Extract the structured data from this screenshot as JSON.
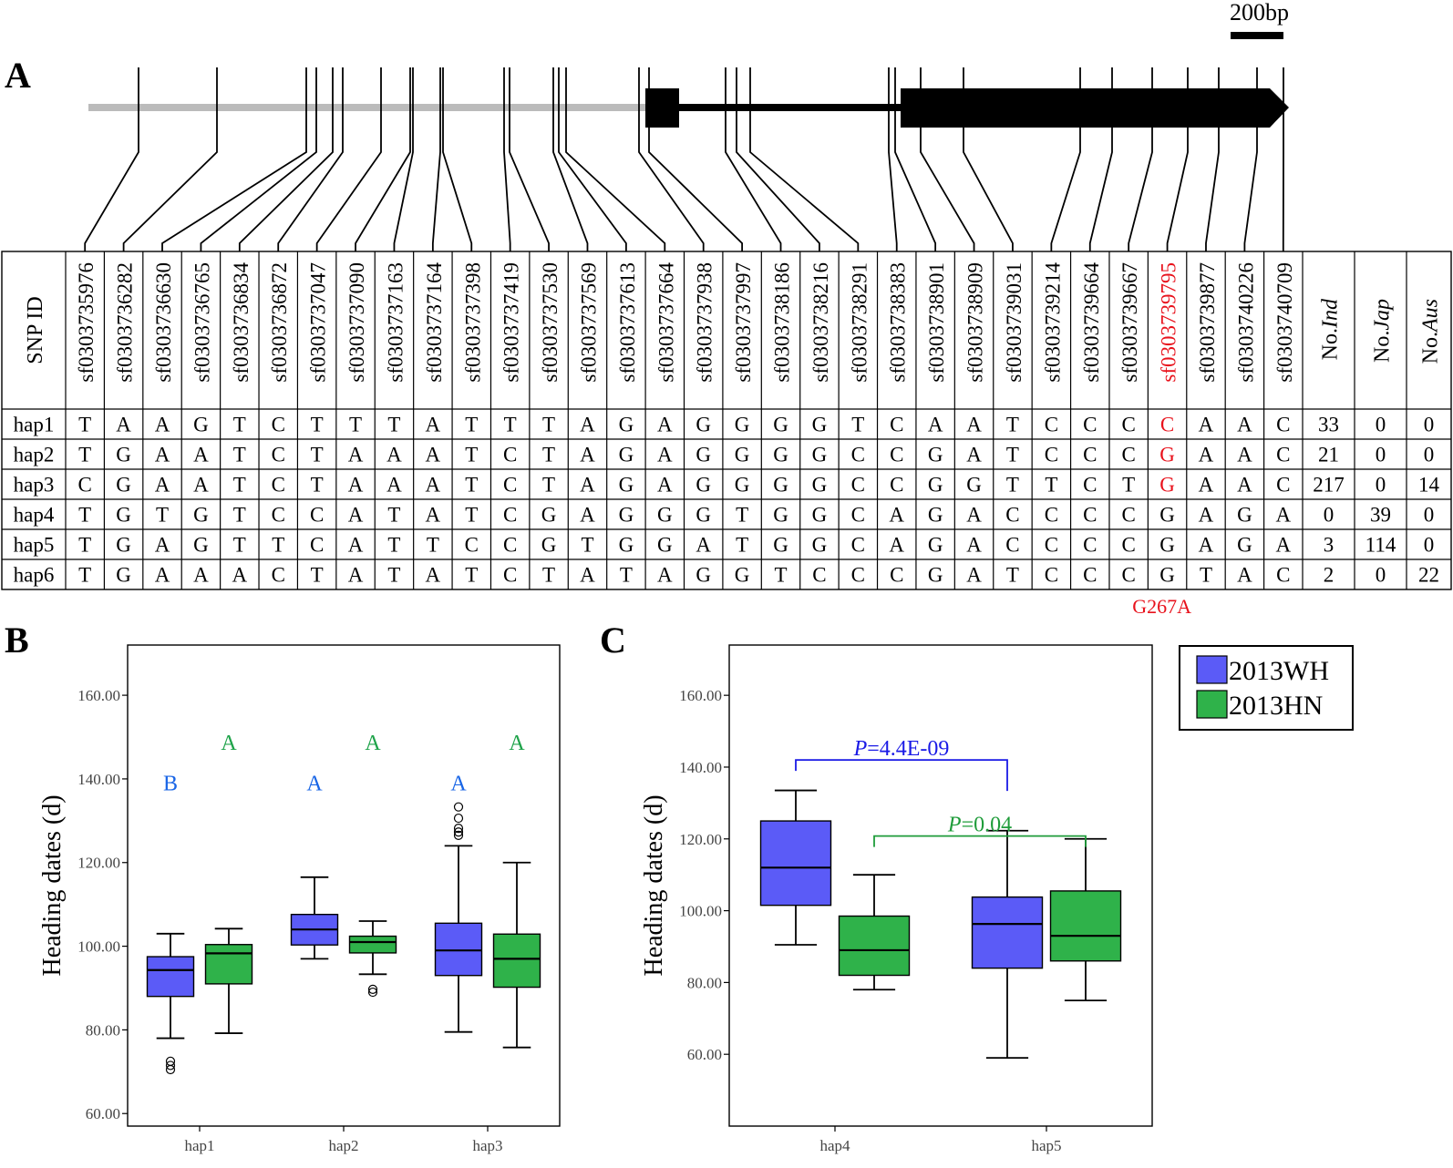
{
  "panels": {
    "a": "A",
    "b": "B",
    "c": "C"
  },
  "scale_bar_label": "200bp",
  "snp_table": {
    "id_header": "SNP ID",
    "snp_ids": [
      "sf0303735976",
      "sf0303736282",
      "sf0303736630",
      "sf0303736765",
      "sf0303736834",
      "sf0303736872",
      "sf0303737047",
      "sf0303737090",
      "sf0303737163",
      "sf0303737164",
      "sf0303737398",
      "sf0303737419",
      "sf0303737530",
      "sf0303737569",
      "sf0303737613",
      "sf0303737664",
      "sf0303737938",
      "sf0303737997",
      "sf0303738186",
      "sf0303738216",
      "sf0303738291",
      "sf0303738383",
      "sf0303738901",
      "sf0303738909",
      "sf0303739031",
      "sf0303739214",
      "sf0303739664",
      "sf0303739667",
      "sf0303739795",
      "sf0303739877",
      "sf0303740226",
      "sf0303740709"
    ],
    "highlight_index": 28,
    "count_headers": [
      {
        "prefix": "No.",
        "italic": "Ind"
      },
      {
        "prefix": "No.",
        "italic": "Jap"
      },
      {
        "prefix": "No.",
        "italic": "Aus"
      }
    ],
    "rows": [
      {
        "name": "hap1",
        "alleles": [
          "T",
          "A",
          "A",
          "G",
          "T",
          "C",
          "T",
          "T",
          "T",
          "A",
          "T",
          "T",
          "T",
          "A",
          "G",
          "A",
          "G",
          "G",
          "G",
          "G",
          "T",
          "C",
          "A",
          "A",
          "T",
          "C",
          "C",
          "C",
          "C",
          "A",
          "A",
          "C"
        ],
        "counts": [
          "33",
          "0",
          "0"
        ]
      },
      {
        "name": "hap2",
        "alleles": [
          "T",
          "G",
          "A",
          "A",
          "T",
          "C",
          "T",
          "A",
          "A",
          "A",
          "T",
          "C",
          "T",
          "A",
          "G",
          "A",
          "G",
          "G",
          "G",
          "G",
          "C",
          "C",
          "G",
          "A",
          "T",
          "C",
          "C",
          "C",
          "G",
          "A",
          "A",
          "C"
        ],
        "counts": [
          "21",
          "0",
          "0"
        ]
      },
      {
        "name": "hap3",
        "alleles": [
          "C",
          "G",
          "A",
          "A",
          "T",
          "C",
          "T",
          "A",
          "A",
          "A",
          "T",
          "C",
          "T",
          "A",
          "G",
          "A",
          "G",
          "G",
          "G",
          "G",
          "C",
          "C",
          "G",
          "G",
          "T",
          "T",
          "C",
          "T",
          "G",
          "A",
          "A",
          "C"
        ],
        "counts": [
          "217",
          "0",
          "14"
        ]
      },
      {
        "name": "hap4",
        "alleles": [
          "T",
          "G",
          "T",
          "G",
          "T",
          "C",
          "C",
          "A",
          "T",
          "A",
          "T",
          "C",
          "G",
          "A",
          "G",
          "G",
          "G",
          "T",
          "G",
          "G",
          "C",
          "A",
          "G",
          "A",
          "C",
          "C",
          "C",
          "C",
          "G",
          "A",
          "G",
          "A"
        ],
        "counts": [
          "0",
          "39",
          "0"
        ]
      },
      {
        "name": "hap5",
        "alleles": [
          "T",
          "G",
          "A",
          "G",
          "T",
          "T",
          "C",
          "A",
          "T",
          "T",
          "C",
          "C",
          "G",
          "T",
          "G",
          "G",
          "A",
          "T",
          "G",
          "G",
          "C",
          "A",
          "G",
          "A",
          "C",
          "C",
          "C",
          "C",
          "G",
          "A",
          "G",
          "A"
        ],
        "counts": [
          "3",
          "114",
          "0"
        ]
      },
      {
        "name": "hap6",
        "alleles": [
          "T",
          "G",
          "A",
          "A",
          "A",
          "C",
          "T",
          "A",
          "T",
          "A",
          "T",
          "C",
          "T",
          "A",
          "T",
          "A",
          "G",
          "G",
          "T",
          "C",
          "C",
          "C",
          "G",
          "A",
          "T",
          "C",
          "C",
          "C",
          "G",
          "T",
          "A",
          "C"
        ],
        "counts": [
          "2",
          "0",
          "22"
        ]
      }
    ],
    "red_cells": [
      [
        0,
        28
      ],
      [
        1,
        28
      ],
      [
        2,
        28
      ]
    ],
    "mutation_label": "G267A"
  },
  "legend": {
    "items": [
      {
        "label": "2013WH",
        "color": "#5b5bf7"
      },
      {
        "label": "2013HN",
        "color": "#2fb24a"
      }
    ]
  },
  "chart_data": [
    {
      "type": "box",
      "panel": "B",
      "ylabel": "Heading dates (d)",
      "ylim": [
        57,
        172
      ],
      "yticks": [
        "60.00",
        "80.00",
        "100.00",
        "120.00",
        "140.00",
        "160.00"
      ],
      "ytick_values": [
        60,
        80,
        100,
        120,
        140,
        160
      ],
      "categories": [
        "hap1",
        "hap2",
        "hap3"
      ],
      "series": [
        {
          "name": "2013WH",
          "color": "#5b5bf7",
          "letter_color": "#1a66e6",
          "boxes": [
            {
              "whisker_low": 78,
              "q1": 88,
              "median": 94.3,
              "q3": 97.5,
              "whisker_high": 103,
              "outliers": [
                72.5,
                71.5,
                70.5
              ],
              "letter": "B",
              "letter_y": 139
            },
            {
              "whisker_low": 97,
              "q1": 100.3,
              "median": 104,
              "q3": 107.6,
              "whisker_high": 116.5,
              "outliers": [],
              "letter": "A",
              "letter_y": 139
            },
            {
              "whisker_low": 79.5,
              "q1": 93,
              "median": 99,
              "q3": 105.5,
              "whisker_high": 124,
              "outliers": [
                126.5,
                127.3,
                128.2,
                130.6,
                133.3
              ],
              "letter": "A",
              "letter_y": 139
            }
          ]
        },
        {
          "name": "2013HN",
          "color": "#2fb24a",
          "letter_color": "#1fa34a",
          "boxes": [
            {
              "whisker_low": 79.2,
              "q1": 91,
              "median": 98.3,
              "q3": 100.4,
              "whisker_high": 104.2,
              "outliers": [],
              "letter": "A",
              "letter_y": 148.7
            },
            {
              "whisker_low": 93.3,
              "q1": 98.4,
              "median": 101,
              "q3": 102.4,
              "whisker_high": 106,
              "outliers": [
                89.7,
                89
              ],
              "letter": "A",
              "letter_y": 148.7
            },
            {
              "whisker_low": 75.8,
              "q1": 90.2,
              "median": 97,
              "q3": 102.9,
              "whisker_high": 120,
              "outliers": [],
              "letter": "A",
              "letter_y": 148.7
            }
          ]
        }
      ]
    },
    {
      "type": "box",
      "panel": "C",
      "ylabel": "Heading dates (d)",
      "ylim": [
        40,
        174
      ],
      "yticks": [
        "60.00",
        "80.00",
        "100.00",
        "120.00",
        "140.00",
        "160.00"
      ],
      "ytick_values": [
        60,
        80,
        100,
        120,
        140,
        160
      ],
      "categories": [
        "hap4",
        "hap5"
      ],
      "series": [
        {
          "name": "2013WH",
          "color": "#5b5bf7",
          "boxes": [
            {
              "whisker_low": 90.5,
              "q1": 101.5,
              "median": 112,
              "q3": 125,
              "whisker_high": 133.5,
              "outliers": []
            },
            {
              "whisker_low": 59,
              "q1": 84,
              "median": 96.3,
              "q3": 103.8,
              "whisker_high": 122.3,
              "outliers": []
            }
          ]
        },
        {
          "name": "2013HN",
          "color": "#2fb24a",
          "boxes": [
            {
              "whisker_low": 78,
              "q1": 82,
              "median": 89,
              "q3": 98.5,
              "whisker_high": 110,
              "outliers": []
            },
            {
              "whisker_low": 75,
              "q1": 86,
              "median": 93,
              "q3": 105.5,
              "whisker_high": 120,
              "outliers": []
            }
          ]
        }
      ],
      "annotations": [
        {
          "p_prefix": "P",
          "p_value": "=4.4E-09",
          "color": "#1a1ae6",
          "bracket_y": 142,
          "from": "hap4 2013WH",
          "to": "hap5 2013WH"
        },
        {
          "p_prefix": "P",
          "p_value": "=0.04",
          "color": "#1f9c3a",
          "bracket_y": 120.8,
          "from": "hap4 2013HN",
          "to": "hap5 2013HN"
        }
      ]
    }
  ]
}
